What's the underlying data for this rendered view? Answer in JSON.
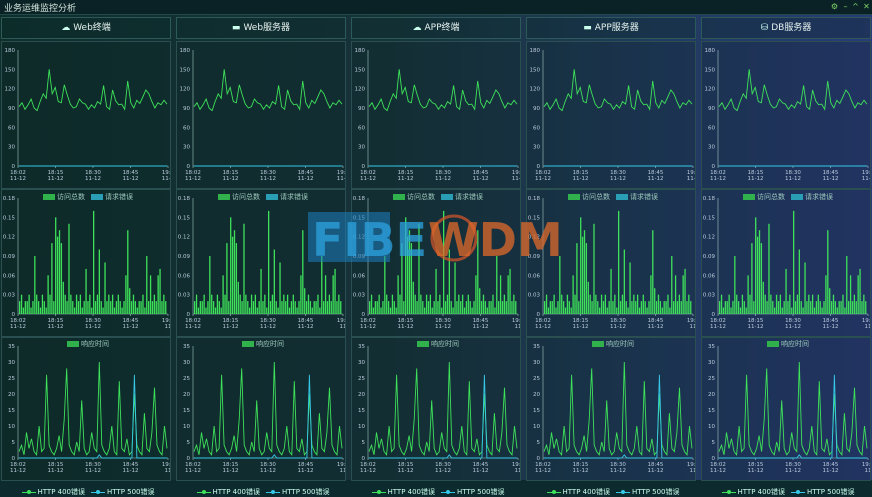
{
  "window": {
    "title": "业务运维监控分析"
  },
  "colors": {
    "green": "#3ee25a",
    "cyan": "#35c8e6",
    "axis": "#9fc6c0"
  },
  "columns": [
    {
      "title": "Web终端",
      "icon": "cloud-icon"
    },
    {
      "title": "Web服务器",
      "icon": "server-icon"
    },
    {
      "title": "APP终端",
      "icon": "cloud-icon"
    },
    {
      "title": "APP服务器",
      "icon": "server-icon"
    },
    {
      "title": "DB服务器",
      "icon": "database-icon"
    }
  ],
  "chart_data": [
    {
      "type": "line",
      "yticks": [
        "180",
        "150",
        "120",
        "90",
        "60",
        "30",
        "0"
      ],
      "ylim": [
        0,
        180
      ],
      "xticks": [
        {
          "t": "18:02",
          "d": "11-12"
        },
        {
          "t": "18:15",
          "d": "11-12"
        },
        {
          "t": "18:30",
          "d": "11-12"
        },
        {
          "t": "18:45",
          "d": "11-12"
        },
        {
          "t": "19:0",
          "d": "11-1"
        }
      ],
      "series": [
        {
          "name": "访问总数",
          "values": [
            92,
            98,
            88,
            95,
            104,
            90,
            86,
            100,
            112,
            105,
            150,
            112,
            122,
            100,
            98,
            126,
            110,
            96,
            90,
            92,
            104,
            98,
            96,
            88,
            95,
            90,
            100,
            96,
            125,
            92,
            88,
            118,
            101,
            95,
            96,
            88,
            132,
            98,
            90,
            102,
            97,
            107,
            118,
            112,
            100,
            90,
            98,
            95,
            102,
            96
          ]
        },
        {
          "name": "请求错误",
          "values": [
            0,
            0,
            0,
            0,
            0,
            0,
            0,
            0,
            0,
            0,
            0,
            0,
            0,
            0,
            0,
            0,
            0,
            0,
            0,
            0,
            0,
            0,
            0,
            0,
            0,
            0,
            0,
            0,
            0,
            0,
            0,
            0,
            0,
            0,
            0,
            0,
            0,
            0,
            0,
            0,
            0,
            0,
            0,
            0,
            0,
            0,
            0,
            0,
            0,
            0
          ]
        }
      ]
    },
    {
      "type": "bar",
      "yticks": [
        "0.18",
        "0.15",
        "0.12",
        "0.09",
        "0.06",
        "0.03",
        "0"
      ],
      "ylim": [
        0,
        0.18
      ],
      "xticks": [
        {
          "t": "18:02",
          "d": "11-12"
        },
        {
          "t": "18:15",
          "d": "11-12"
        },
        {
          "t": "18:30",
          "d": "11-12"
        },
        {
          "t": "18:45",
          "d": "11-12"
        },
        {
          "t": "19:0",
          "d": "11"
        }
      ],
      "series": [
        {
          "name": "响应时间",
          "values": [
            0.02,
            0.03,
            0.01,
            0.02,
            0.02,
            0.03,
            0.01,
            0.02,
            0.09,
            0.03,
            0.02,
            0.01,
            0.03,
            0.02,
            0.01,
            0.06,
            0.03,
            0.11,
            0.02,
            0.15,
            0.12,
            0.13,
            0.11,
            0.05,
            0.03,
            0.02,
            0.14,
            0.03,
            0.02,
            0.01,
            0.03,
            0.02,
            0.03,
            0.01,
            0.02,
            0.07,
            0.02,
            0.03,
            0.01,
            0.16,
            0.02,
            0.03,
            0.1,
            0.02,
            0.01,
            0.08,
            0.02,
            0.03,
            0.02,
            0.03,
            0.01,
            0.02,
            0.03,
            0.02,
            0.01,
            0.02,
            0.06,
            0.13,
            0.04,
            0.02,
            0.03,
            0.02,
            0.01,
            0.02,
            0.02,
            0.03,
            0.01,
            0.09,
            0.02,
            0.06,
            0.02,
            0.03,
            0.02,
            0.06,
            0.07,
            0.02,
            0.03,
            0.02
          ]
        }
      ]
    },
    {
      "type": "line",
      "yticks": [
        "35",
        "30",
        "25",
        "20",
        "15",
        "10",
        "5",
        "0"
      ],
      "ylim": [
        0,
        35
      ],
      "xticks": [
        {
          "t": "18:02",
          "d": "11-12"
        },
        {
          "t": "18:15",
          "d": "11-12"
        },
        {
          "t": "18:30",
          "d": "11-12"
        },
        {
          "t": "18:45",
          "d": "11-12"
        },
        {
          "t": "19:0",
          "d": "11"
        }
      ],
      "series": [
        {
          "name": "HTTP 400错误",
          "values": [
            2,
            4,
            1,
            8,
            3,
            6,
            2,
            1,
            10,
            2,
            3,
            26,
            4,
            2,
            1,
            3,
            7,
            2,
            12,
            28,
            4,
            2,
            1,
            5,
            2,
            18,
            3,
            1,
            2,
            8,
            3,
            2,
            30,
            4,
            2,
            1,
            3,
            10,
            2,
            1,
            24,
            3,
            2,
            6,
            1,
            2,
            20,
            4,
            2,
            1,
            14,
            3,
            2,
            8,
            22,
            4,
            2,
            1,
            10,
            3
          ]
        },
        {
          "name": "HTTP 500错误",
          "values": [
            0,
            0,
            0,
            0,
            0,
            0,
            0,
            0,
            0,
            0,
            0,
            0,
            0,
            0,
            0,
            0,
            0,
            0,
            0,
            0,
            0,
            0,
            0,
            0,
            0,
            0,
            0,
            0,
            0,
            0,
            0,
            0,
            1,
            0,
            0,
            0,
            0,
            0,
            0,
            0,
            0,
            0,
            0,
            0,
            0,
            0,
            26,
            0,
            0,
            0,
            0,
            0,
            0,
            0,
            0,
            0,
            0,
            0,
            0,
            0
          ]
        }
      ]
    }
  ]
}
